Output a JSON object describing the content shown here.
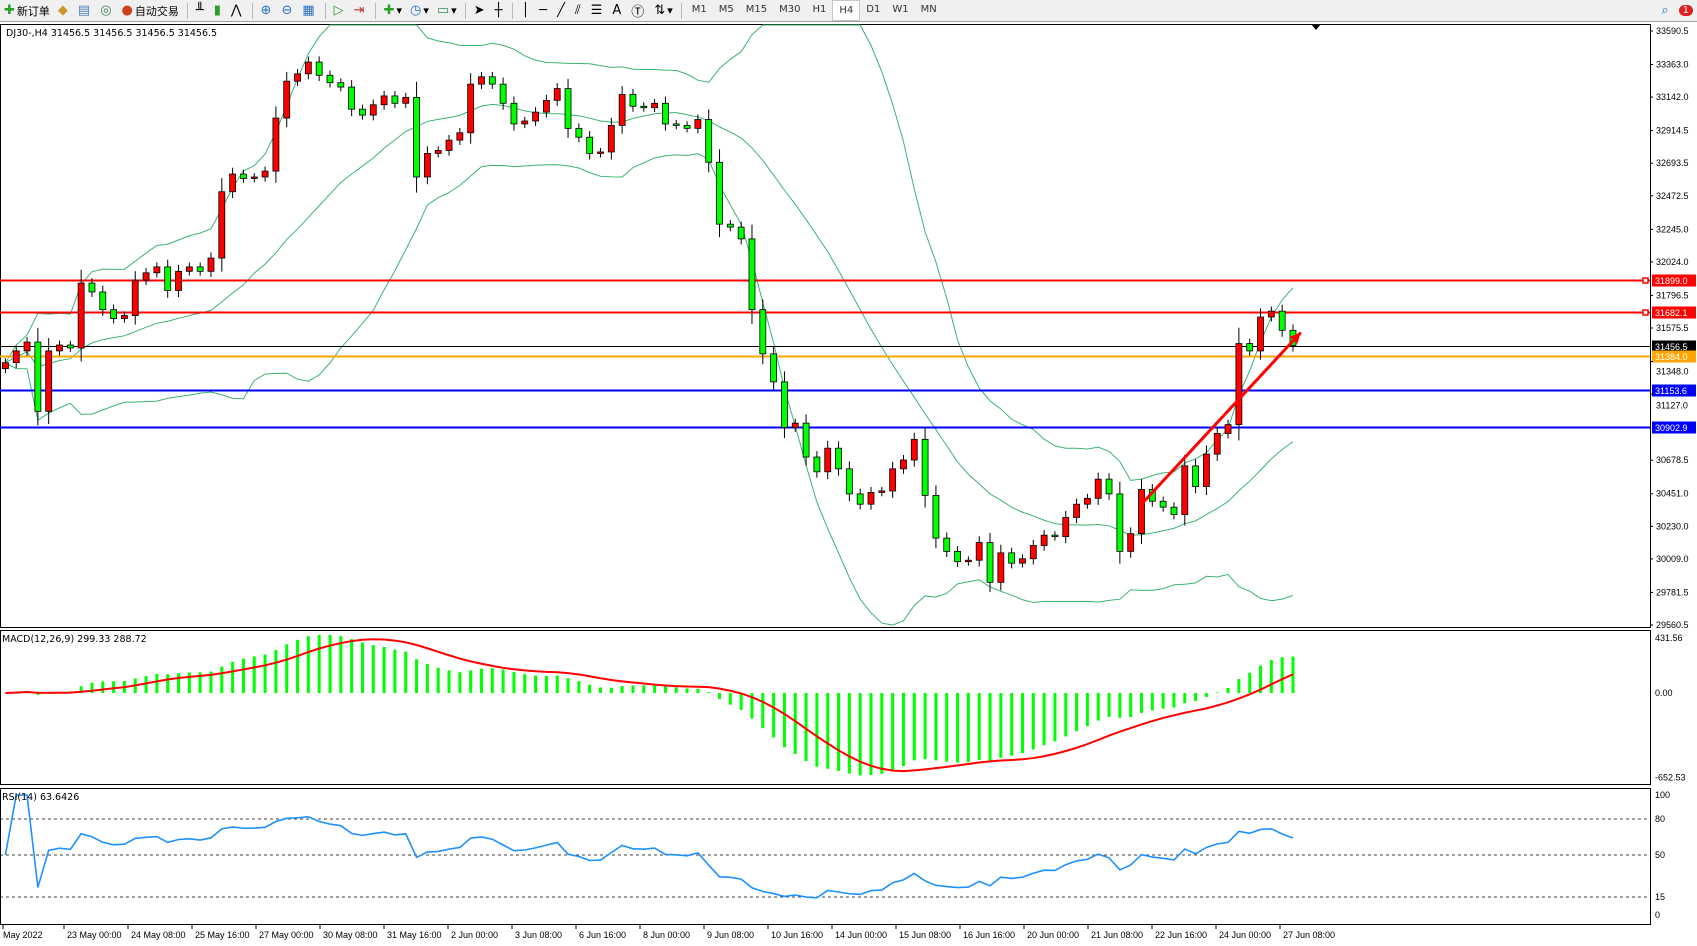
{
  "toolbar": {
    "new_order_label": "新订单",
    "auto_trading_label": "自动交易",
    "timeframes": [
      "M1",
      "M5",
      "M15",
      "M30",
      "H1",
      "H4",
      "D1",
      "W1",
      "MN"
    ],
    "active_timeframe": "H4",
    "notification_count": "1"
  },
  "chart_header": "DJ30-,H4  31456.5 31456.5 31456.5 31456.5",
  "colors": {
    "bull_body": "#ff0000",
    "bear_body": "#00ff00",
    "bollinger": "#3cb371",
    "macd_hist": "#00ff00",
    "macd_signal": "#ff0000",
    "rsi": "#1e90ff",
    "resistance": "#ff0000",
    "support": "#0000ff",
    "bid": "#000000",
    "pivot": "#ffa500",
    "trend_arrow": "#ff0000"
  },
  "chart_data": [
    {
      "type": "candlestick",
      "symbol": "DJ30-",
      "timeframe": "H4",
      "ylim": [
        29560.5,
        33590.5
      ],
      "y_ticks": [
        "33590.5",
        "33363.0",
        "33142.0",
        "32914.5",
        "32693.5",
        "32472.5",
        "32245.0",
        "32024.0",
        "31796.5",
        "31575.5",
        "31348.0",
        "31127.0",
        "30678.5",
        "30451.0",
        "30230.0",
        "30009.0",
        "29781.5",
        "29560.5"
      ],
      "x_tick_labels": [
        "May 2022",
        "23 May 00:00",
        "24 May 08:00",
        "25 May 16:00",
        "27 May 00:00",
        "30 May 08:00",
        "31 May 16:00",
        "2 Jun 00:00",
        "3 Jun 08:00",
        "6 Jun 16:00",
        "8 Jun 00:00",
        "9 Jun 08:00",
        "10 Jun 16:00",
        "14 Jun 00:00",
        "15 Jun 08:00",
        "16 Jun 16:00",
        "20 Jun 00:00",
        "21 Jun 08:00",
        "22 Jun 16:00",
        "24 Jun 00:00",
        "27 Jun 08:00"
      ],
      "first_open": 31300,
      "close": [
        31340,
        31420,
        31480,
        31010,
        31420,
        31460,
        31440,
        31880,
        31820,
        31700,
        31640,
        31660,
        31900,
        31950,
        31990,
        31830,
        31960,
        31990,
        31960,
        32050,
        32500,
        32620,
        32590,
        32600,
        32640,
        33000,
        33250,
        33300,
        33380,
        33290,
        33240,
        33210,
        33060,
        33020,
        33090,
        33150,
        33100,
        33140,
        32600,
        32760,
        32780,
        32850,
        32900,
        33230,
        33280,
        33230,
        33100,
        32960,
        32980,
        33040,
        33120,
        33200,
        32930,
        32870,
        32760,
        32770,
        32950,
        33160,
        33080,
        33070,
        33100,
        32960,
        32950,
        32930,
        32990,
        32700,
        32280,
        32260,
        32180,
        31700,
        31400,
        31210,
        30900,
        30930,
        30700,
        30600,
        30760,
        30620,
        30450,
        30380,
        30460,
        30470,
        30620,
        30680,
        30820,
        30440,
        30150,
        30060,
        29990,
        30000,
        30120,
        29850,
        30050,
        29980,
        30010,
        30100,
        30170,
        30160,
        30290,
        30380,
        30420,
        30550,
        30450,
        30060,
        30180,
        30480,
        30400,
        30360,
        30310,
        30640,
        30500,
        30720,
        30860,
        30920,
        31470,
        31420,
        31650,
        31690,
        31560,
        31456.5
      ],
      "indicator_bollinger": {
        "period": 20,
        "deviation": 2
      },
      "horizontal_lines": [
        {
          "price": 31899.0,
          "label": "31899.0",
          "color": "#ff0000"
        },
        {
          "price": 31682.1,
          "label": "31682.1",
          "color": "#ff0000"
        },
        {
          "price": 31456.5,
          "label": "31456.5",
          "color": "#000000"
        },
        {
          "price": 31384.0,
          "label": "31384.0",
          "color": "#ffa500"
        },
        {
          "price": 31153.6,
          "label": "31153.6",
          "color": "#0000ff"
        },
        {
          "price": 30902.9,
          "label": "30902.9",
          "color": "#0000ff"
        }
      ],
      "trend_arrow": {
        "from_bar": 105,
        "from_price": 30380,
        "to_bar": 120,
        "to_price": 31545
      }
    },
    {
      "type": "bar+line",
      "label": "MACD(12,26,9) 299.33 288.72",
      "ylim": [
        -652.53,
        431.56
      ],
      "y_ticks": [
        "431.56",
        "0.00",
        "-652.53"
      ]
    },
    {
      "type": "line",
      "label": "RSI(14) 63.6426",
      "ylim": [
        0,
        100
      ],
      "levels": [
        80,
        50,
        15
      ],
      "y_ticks": [
        "100",
        "80",
        "50",
        "15",
        "0"
      ]
    }
  ]
}
